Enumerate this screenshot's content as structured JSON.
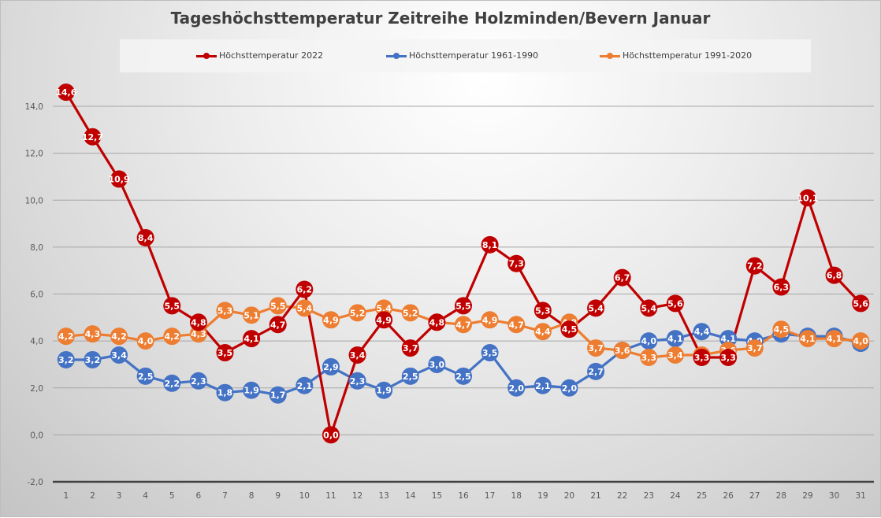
{
  "chart_data": {
    "type": "line",
    "title": "Tageshöchsttemperatur Zeitreihe Holzminden/Bevern Januar",
    "xlabel": "",
    "ylabel": "",
    "x": [
      1,
      2,
      3,
      4,
      5,
      6,
      7,
      8,
      9,
      10,
      11,
      12,
      13,
      14,
      15,
      16,
      17,
      18,
      19,
      20,
      21,
      22,
      23,
      24,
      25,
      26,
      27,
      28,
      29,
      30,
      31
    ],
    "ylim": [
      -2.0,
      14.0
    ],
    "yticks": [
      "-2,0",
      "0,0",
      "2,0",
      "4,0",
      "6,0",
      "8,0",
      "10,0",
      "12,0",
      "14,0"
    ],
    "ytick_values": [
      -2,
      0,
      2,
      4,
      6,
      8,
      10,
      12,
      14
    ],
    "grid": true,
    "legend_position": "top",
    "data_labels": true,
    "decimal_separator": ",",
    "series": [
      {
        "name": "Höchsttemperatur 2022",
        "color": "#c00000",
        "values": [
          14.6,
          12.7,
          10.9,
          8.4,
          5.5,
          4.8,
          3.5,
          4.1,
          4.7,
          6.2,
          0.0,
          3.4,
          4.9,
          3.7,
          4.8,
          5.5,
          8.1,
          7.3,
          5.3,
          4.5,
          5.4,
          6.7,
          5.4,
          5.6,
          3.3,
          3.3,
          7.2,
          6.3,
          10.1,
          6.8,
          5.6
        ]
      },
      {
        "name": "Höchsttemperatur 1961-1990",
        "color": "#4472c4",
        "values": [
          3.2,
          3.2,
          3.4,
          2.5,
          2.2,
          2.3,
          1.8,
          1.9,
          1.7,
          2.1,
          2.9,
          2.3,
          1.9,
          2.5,
          3.0,
          2.5,
          3.5,
          2.0,
          2.1,
          2.0,
          2.7,
          3.6,
          4.0,
          4.1,
          4.4,
          4.1,
          4.0,
          4.3,
          4.2,
          4.2,
          3.9
        ]
      },
      {
        "name": "Höchsttemperatur 1991-2020",
        "color": "#ed7d31",
        "values": [
          4.2,
          4.3,
          4.2,
          4.0,
          4.2,
          4.3,
          5.3,
          5.1,
          5.5,
          5.4,
          4.9,
          5.2,
          5.4,
          5.2,
          4.8,
          4.7,
          4.9,
          4.7,
          4.4,
          4.8,
          3.7,
          3.6,
          3.3,
          3.4,
          3.4,
          3.6,
          3.7,
          4.5,
          4.1,
          4.1,
          4.0
        ]
      }
    ]
  }
}
